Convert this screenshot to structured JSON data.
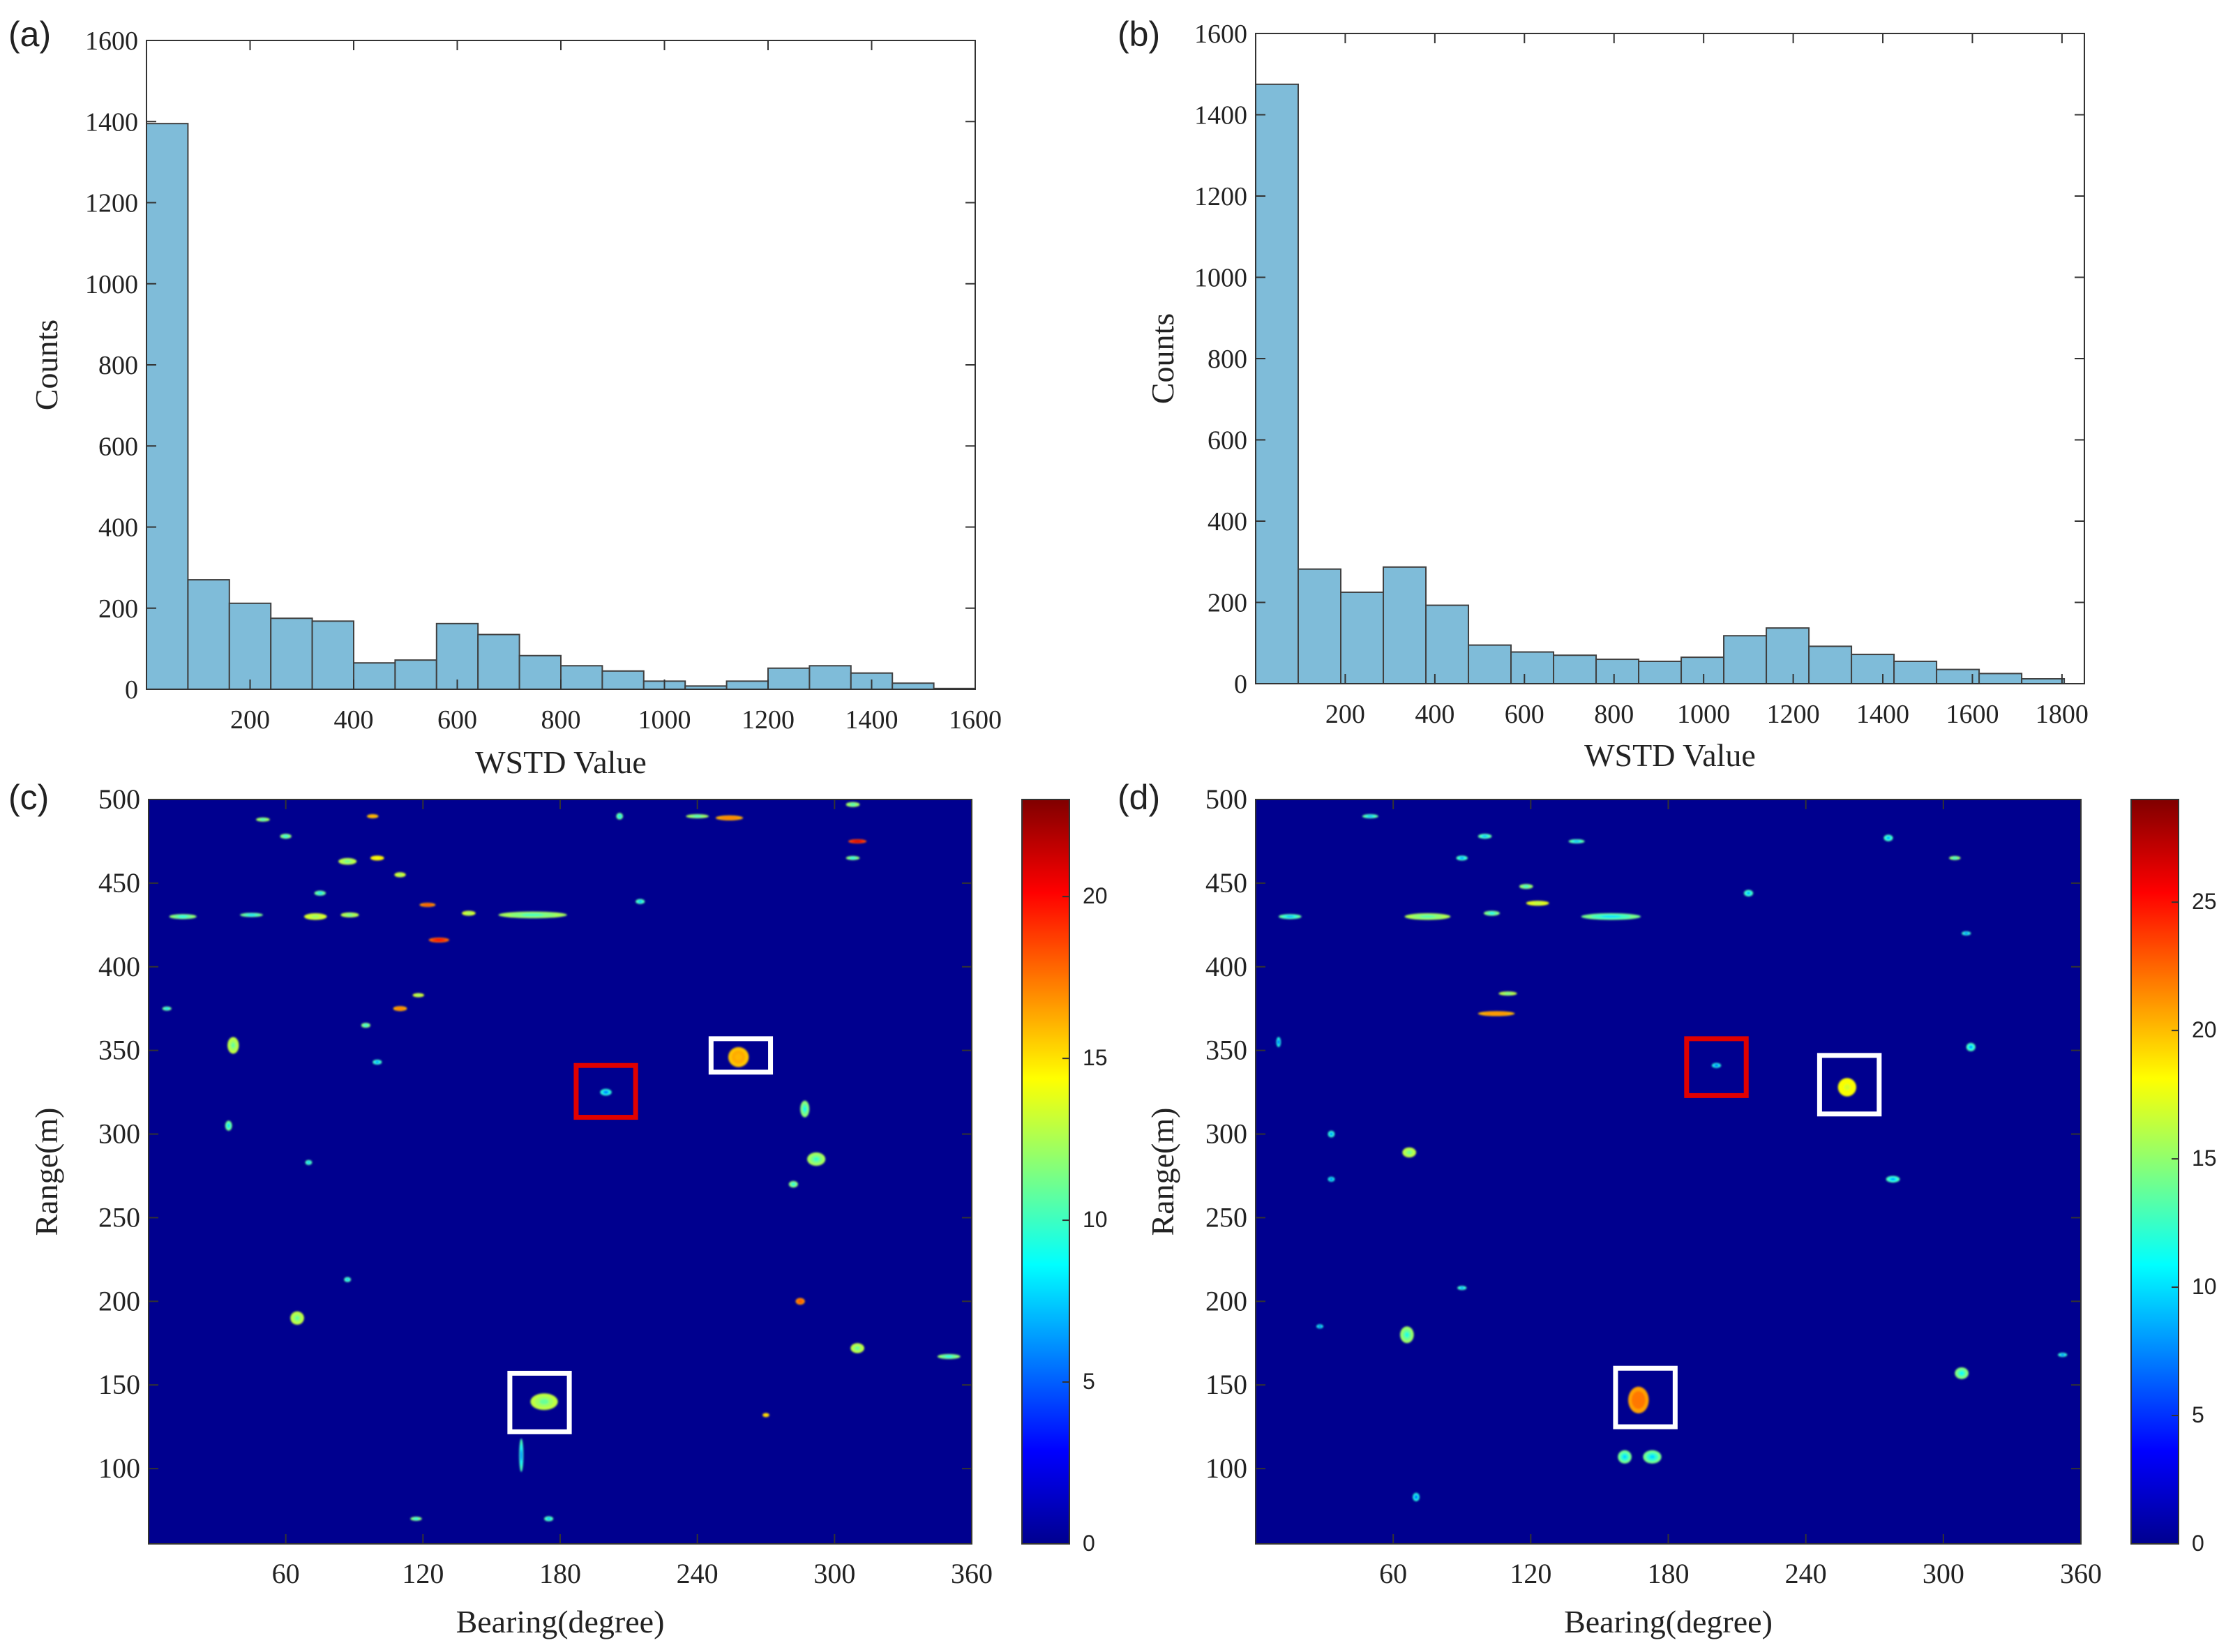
{
  "colors": {
    "bar_fill": "#7fbcd9",
    "bar_stroke": "#404040",
    "axis": "#333333",
    "heatmap_bg": "#00008f",
    "box_white": "#ffffff",
    "box_red": "#e00000"
  },
  "chart_data": [
    {
      "id": "a",
      "panel_label": "(a)",
      "type": "bar",
      "xlabel": "WSTD Value",
      "ylabel": "Counts",
      "xlim": [
        0,
        1600
      ],
      "ylim": [
        0,
        1600
      ],
      "xticks": [
        200,
        400,
        600,
        800,
        1000,
        1200,
        1400,
        1600
      ],
      "yticks": [
        0,
        200,
        400,
        600,
        800,
        1000,
        1200,
        1400,
        1600
      ],
      "bin_width": 80,
      "bin_edges_start": 0,
      "values": [
        1395,
        270,
        212,
        175,
        168,
        65,
        72,
        162,
        135,
        83,
        58,
        45,
        20,
        8,
        20,
        52,
        58,
        40,
        15,
        2
      ]
    },
    {
      "id": "b",
      "panel_label": "(b)",
      "type": "bar",
      "xlabel": "WSTD Value",
      "ylabel": "Counts",
      "xlim": [
        0,
        1850
      ],
      "ylim": [
        0,
        1600
      ],
      "xticks": [
        200,
        400,
        600,
        800,
        1000,
        1200,
        1400,
        1600,
        1800
      ],
      "yticks": [
        0,
        200,
        400,
        600,
        800,
        1000,
        1200,
        1400,
        1600
      ],
      "bin_width": 95,
      "bin_edges_start": 0,
      "values": [
        1475,
        282,
        225,
        287,
        193,
        95,
        78,
        70,
        60,
        55,
        65,
        118,
        137,
        92,
        72,
        55,
        35,
        25,
        12
      ]
    },
    {
      "id": "c",
      "panel_label": "(c)",
      "type": "heatmap",
      "xlabel": "Bearing(degree)",
      "ylabel": "Range(m)",
      "xlim": [
        0,
        360
      ],
      "ylim": [
        55,
        500
      ],
      "xticks": [
        60,
        120,
        180,
        240,
        300,
        360
      ],
      "yticks": [
        100,
        150,
        200,
        250,
        300,
        350,
        400,
        450,
        500
      ],
      "colorbar": {
        "min": 0,
        "max": 23,
        "ticks": [
          0,
          5,
          10,
          15,
          20
        ]
      },
      "blobs": [
        {
          "x": 258,
          "y": 346,
          "w": 9,
          "h": 12,
          "v": 16
        },
        {
          "x": 173,
          "y": 140,
          "w": 12,
          "h": 10,
          "v": 11
        },
        {
          "x": 200,
          "y": 325,
          "w": 5,
          "h": 4,
          "v": 5
        },
        {
          "x": 168,
          "y": 431,
          "w": 30,
          "h": 4,
          "v": 10
        },
        {
          "x": 15,
          "y": 430,
          "w": 12,
          "h": 3,
          "v": 9
        },
        {
          "x": 45,
          "y": 431,
          "w": 10,
          "h": 2,
          "v": 8
        },
        {
          "x": 73,
          "y": 430,
          "w": 10,
          "h": 4,
          "v": 12
        },
        {
          "x": 88,
          "y": 431,
          "w": 8,
          "h": 3,
          "v": 11
        },
        {
          "x": 122,
          "y": 437,
          "w": 7,
          "h": 2,
          "v": 18
        },
        {
          "x": 127,
          "y": 416,
          "w": 9,
          "h": 3,
          "v": 20
        },
        {
          "x": 87,
          "y": 463,
          "w": 8,
          "h": 4,
          "v": 11
        },
        {
          "x": 100,
          "y": 465,
          "w": 6,
          "h": 3,
          "v": 14
        },
        {
          "x": 110,
          "y": 455,
          "w": 5,
          "h": 3,
          "v": 12
        },
        {
          "x": 98,
          "y": 490,
          "w": 5,
          "h": 2,
          "v": 16
        },
        {
          "x": 50,
          "y": 488,
          "w": 6,
          "h": 2,
          "v": 10
        },
        {
          "x": 254,
          "y": 489,
          "w": 12,
          "h": 3,
          "v": 17
        },
        {
          "x": 240,
          "y": 490,
          "w": 10,
          "h": 2,
          "v": 10
        },
        {
          "x": 206,
          "y": 490,
          "w": 3,
          "h": 4,
          "v": 8
        },
        {
          "x": 308,
          "y": 497,
          "w": 6,
          "h": 3,
          "v": 10
        },
        {
          "x": 310,
          "y": 475,
          "w": 8,
          "h": 2,
          "v": 21
        },
        {
          "x": 308,
          "y": 465,
          "w": 6,
          "h": 2,
          "v": 9
        },
        {
          "x": 215,
          "y": 439,
          "w": 4,
          "h": 3,
          "v": 7
        },
        {
          "x": 110,
          "y": 375,
          "w": 6,
          "h": 3,
          "v": 17
        },
        {
          "x": 118,
          "y": 383,
          "w": 5,
          "h": 2,
          "v": 12
        },
        {
          "x": 95,
          "y": 365,
          "w": 4,
          "h": 3,
          "v": 9
        },
        {
          "x": 37,
          "y": 353,
          "w": 5,
          "h": 10,
          "v": 11
        },
        {
          "x": 8,
          "y": 375,
          "w": 4,
          "h": 2,
          "v": 8
        },
        {
          "x": 35,
          "y": 305,
          "w": 3,
          "h": 6,
          "v": 8
        },
        {
          "x": 287,
          "y": 315,
          "w": 4,
          "h": 10,
          "v": 9
        },
        {
          "x": 292,
          "y": 285,
          "w": 8,
          "h": 8,
          "v": 10
        },
        {
          "x": 282,
          "y": 270,
          "w": 4,
          "h": 4,
          "v": 9
        },
        {
          "x": 65,
          "y": 190,
          "w": 6,
          "h": 8,
          "v": 11
        },
        {
          "x": 310,
          "y": 172,
          "w": 6,
          "h": 6,
          "v": 11
        },
        {
          "x": 350,
          "y": 167,
          "w": 10,
          "h": 3,
          "v": 9
        },
        {
          "x": 285,
          "y": 200,
          "w": 4,
          "h": 4,
          "v": 18
        },
        {
          "x": 270,
          "y": 132,
          "w": 3,
          "h": 2,
          "v": 15
        },
        {
          "x": 117,
          "y": 70,
          "w": 5,
          "h": 2,
          "v": 9
        },
        {
          "x": 175,
          "y": 70,
          "w": 4,
          "h": 3,
          "v": 7
        },
        {
          "x": 163,
          "y": 108,
          "w": 1,
          "h": 20,
          "v": 6
        },
        {
          "x": 87,
          "y": 213,
          "w": 3,
          "h": 3,
          "v": 7
        },
        {
          "x": 70,
          "y": 283,
          "w": 3,
          "h": 3,
          "v": 7
        },
        {
          "x": 100,
          "y": 343,
          "w": 4,
          "h": 3,
          "v": 6
        },
        {
          "x": 60,
          "y": 478,
          "w": 5,
          "h": 3,
          "v": 9
        },
        {
          "x": 75,
          "y": 444,
          "w": 5,
          "h": 3,
          "v": 8
        },
        {
          "x": 140,
          "y": 432,
          "w": 6,
          "h": 3,
          "v": 12
        }
      ],
      "boxes": [
        {
          "color": "white",
          "x0": 246,
          "x1": 272,
          "y0": 337,
          "y1": 357
        },
        {
          "color": "white",
          "x0": 158,
          "x1": 184,
          "y0": 122,
          "y1": 157
        },
        {
          "color": "red",
          "x0": 187,
          "x1": 213,
          "y0": 310,
          "y1": 341
        }
      ]
    },
    {
      "id": "d",
      "panel_label": "(d)",
      "type": "heatmap",
      "xlabel": "Bearing(degree)",
      "ylabel": "Range(m)",
      "xlim": [
        0,
        360
      ],
      "ylim": [
        55,
        500
      ],
      "xticks": [
        60,
        120,
        180,
        240,
        300,
        360
      ],
      "yticks": [
        100,
        150,
        200,
        250,
        300,
        350,
        400,
        450,
        500
      ],
      "colorbar": {
        "min": 0,
        "max": 29,
        "ticks": [
          0,
          5,
          10,
          15,
          20,
          25
        ]
      },
      "blobs": [
        {
          "x": 167,
          "y": 141,
          "w": 9,
          "h": 16,
          "v": 22
        },
        {
          "x": 258,
          "y": 328,
          "w": 8,
          "h": 11,
          "v": 17
        },
        {
          "x": 161,
          "y": 107,
          "w": 6,
          "h": 8,
          "v": 10
        },
        {
          "x": 173,
          "y": 107,
          "w": 8,
          "h": 8,
          "v": 10
        },
        {
          "x": 201,
          "y": 341,
          "w": 4,
          "h": 3,
          "v": 6
        },
        {
          "x": 155,
          "y": 430,
          "w": 26,
          "h": 4,
          "v": 10
        },
        {
          "x": 15,
          "y": 430,
          "w": 10,
          "h": 3,
          "v": 9
        },
        {
          "x": 75,
          "y": 430,
          "w": 20,
          "h": 4,
          "v": 13
        },
        {
          "x": 103,
          "y": 432,
          "w": 7,
          "h": 3,
          "v": 11
        },
        {
          "x": 123,
          "y": 438,
          "w": 10,
          "h": 3,
          "v": 16
        },
        {
          "x": 118,
          "y": 448,
          "w": 6,
          "h": 3,
          "v": 12
        },
        {
          "x": 105,
          "y": 372,
          "w": 16,
          "h": 3,
          "v": 21
        },
        {
          "x": 110,
          "y": 384,
          "w": 8,
          "h": 2,
          "v": 14
        },
        {
          "x": 67,
          "y": 289,
          "w": 6,
          "h": 6,
          "v": 14
        },
        {
          "x": 66,
          "y": 180,
          "w": 6,
          "h": 10,
          "v": 12
        },
        {
          "x": 308,
          "y": 157,
          "w": 6,
          "h": 7,
          "v": 11
        },
        {
          "x": 278,
          "y": 273,
          "w": 6,
          "h": 4,
          "v": 8
        },
        {
          "x": 305,
          "y": 465,
          "w": 5,
          "h": 2,
          "v": 12
        },
        {
          "x": 276,
          "y": 477,
          "w": 4,
          "h": 4,
          "v": 8
        },
        {
          "x": 215,
          "y": 444,
          "w": 4,
          "h": 4,
          "v": 8
        },
        {
          "x": 50,
          "y": 490,
          "w": 7,
          "h": 2,
          "v": 9
        },
        {
          "x": 100,
          "y": 478,
          "w": 6,
          "h": 3,
          "v": 9
        },
        {
          "x": 90,
          "y": 465,
          "w": 5,
          "h": 3,
          "v": 8
        },
        {
          "x": 312,
          "y": 352,
          "w": 4,
          "h": 5,
          "v": 8
        },
        {
          "x": 310,
          "y": 420,
          "w": 4,
          "h": 2,
          "v": 7
        },
        {
          "x": 90,
          "y": 208,
          "w": 4,
          "h": 2,
          "v": 8
        },
        {
          "x": 140,
          "y": 475,
          "w": 7,
          "h": 2,
          "v": 9
        },
        {
          "x": 33,
          "y": 300,
          "w": 3,
          "h": 4,
          "v": 7
        },
        {
          "x": 70,
          "y": 83,
          "w": 3,
          "h": 5,
          "v": 6
        },
        {
          "x": 352,
          "y": 168,
          "w": 4,
          "h": 2,
          "v": 7
        },
        {
          "x": 10,
          "y": 355,
          "w": 2,
          "h": 6,
          "v": 6
        },
        {
          "x": 33,
          "y": 273,
          "w": 3,
          "h": 3,
          "v": 6
        },
        {
          "x": 28,
          "y": 185,
          "w": 3,
          "h": 2,
          "v": 6
        }
      ],
      "boxes": [
        {
          "color": "white",
          "x0": 246,
          "x1": 272,
          "y0": 312,
          "y1": 347
        },
        {
          "color": "white",
          "x0": 157,
          "x1": 183,
          "y0": 125,
          "y1": 160
        },
        {
          "color": "red",
          "x0": 188,
          "x1": 214,
          "y0": 323,
          "y1": 357
        }
      ]
    }
  ]
}
